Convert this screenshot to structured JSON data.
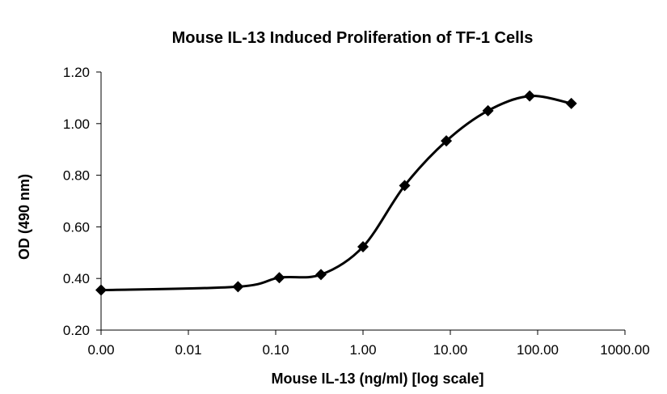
{
  "chart_data": {
    "type": "line",
    "title": "Mouse IL-13 Induced Proliferation of TF-1 Cells",
    "xlabel": "Mouse IL-13 (ng/ml) [log scale]",
    "ylabel": "OD (490 nm)",
    "x_scale": "log",
    "x_tick_labels": [
      "0.00",
      "0.01",
      "0.10",
      "1.00",
      "10.00",
      "100.00",
      "1000.00"
    ],
    "y_tick_labels": [
      "0.20",
      "0.40",
      "0.60",
      "0.80",
      "1.00",
      "1.20"
    ],
    "xlim": [
      0.001,
      1000
    ],
    "ylim": [
      0.2,
      1.2
    ],
    "grid": false,
    "legend": "none",
    "line_color": "#000000",
    "marker": "diamond",
    "series": [
      {
        "x": [
          0.001,
          0.037,
          0.11,
          0.33,
          1.0,
          3.0,
          9.0,
          27.0,
          81.0,
          243.0
        ],
        "y": [
          0.355,
          0.368,
          0.403,
          0.415,
          0.523,
          0.76,
          0.933,
          1.05,
          1.107,
          1.078
        ]
      }
    ]
  }
}
